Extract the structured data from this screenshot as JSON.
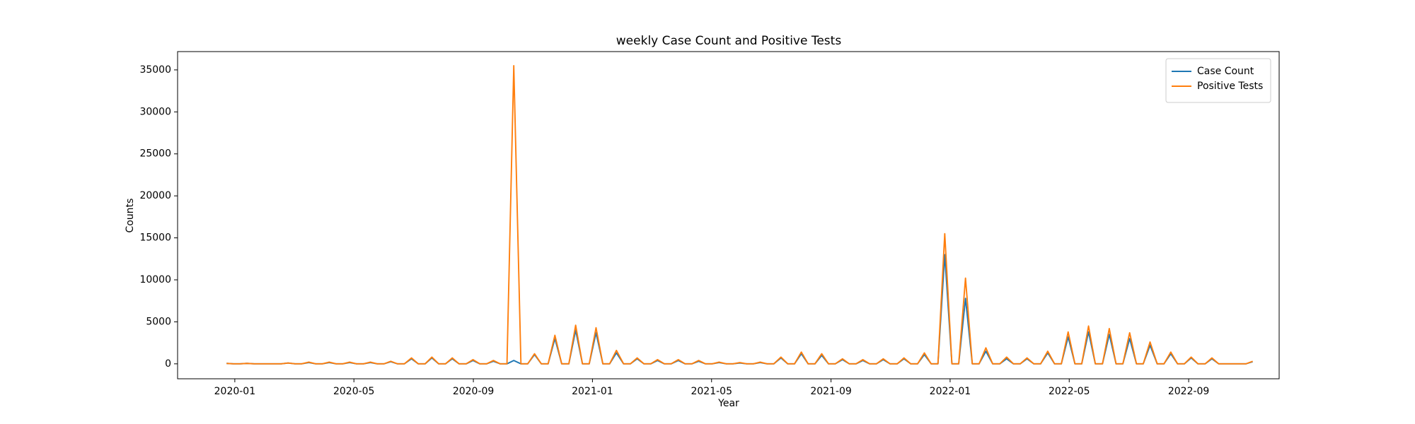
{
  "chart_data": {
    "type": "line",
    "title": "weekly Case Count and Positive Tests",
    "x_label": "Year",
    "y_label": "Counts",
    "x": [
      2019.977,
      2019.996,
      2020.015,
      2020.034,
      2020.054,
      2020.073,
      2020.092,
      2020.111,
      2020.13,
      2020.149,
      2020.168,
      2020.187,
      2020.207,
      2020.226,
      2020.245,
      2020.264,
      2020.283,
      2020.302,
      2020.321,
      2020.34,
      2020.36,
      2020.379,
      2020.398,
      2020.417,
      2020.436,
      2020.455,
      2020.474,
      2020.494,
      2020.513,
      2020.532,
      2020.551,
      2020.57,
      2020.589,
      2020.608,
      2020.627,
      2020.647,
      2020.666,
      2020.685,
      2020.704,
      2020.723,
      2020.742,
      2020.761,
      2020.78,
      2020.8,
      2020.819,
      2020.838,
      2020.857,
      2020.876,
      2020.895,
      2020.914,
      2020.934,
      2020.953,
      2020.972,
      2020.991,
      2021.01,
      2021.029,
      2021.048,
      2021.067,
      2021.087,
      2021.106,
      2021.125,
      2021.144,
      2021.163,
      2021.182,
      2021.201,
      2021.22,
      2021.24,
      2021.259,
      2021.278,
      2021.297,
      2021.316,
      2021.335,
      2021.354,
      2021.374,
      2021.393,
      2021.412,
      2021.431,
      2021.45,
      2021.469,
      2021.488,
      2021.507,
      2021.527,
      2021.546,
      2021.565,
      2021.584,
      2021.603,
      2021.622,
      2021.641,
      2021.66,
      2021.679,
      2021.699,
      2021.718,
      2021.737,
      2021.756,
      2021.775,
      2021.794,
      2021.813,
      2021.832,
      2021.852,
      2021.871,
      2021.89,
      2021.909,
      2021.928,
      2021.947,
      2021.966,
      2021.985,
      2022.005,
      2022.024,
      2022.043,
      2022.062,
      2022.081,
      2022.1,
      2022.119,
      2022.139,
      2022.158,
      2022.177,
      2022.196,
      2022.215,
      2022.234,
      2022.253,
      2022.273,
      2022.292,
      2022.311,
      2022.33,
      2022.349,
      2022.368,
      2022.387,
      2022.406,
      2022.426,
      2022.445,
      2022.464,
      2022.483,
      2022.502,
      2022.521,
      2022.54,
      2022.559,
      2022.579,
      2022.598,
      2022.617,
      2022.636,
      2022.655,
      2022.674,
      2022.693,
      2022.713,
      2022.732,
      2022.751,
      2022.77,
      2022.789,
      2022.808,
      2022.827,
      2022.846
    ],
    "series": [
      {
        "name": "Case Count",
        "color": "#1f77b4",
        "values": [
          50,
          0,
          0,
          50,
          0,
          0,
          0,
          0,
          0,
          100,
          0,
          0,
          150,
          0,
          0,
          150,
          0,
          0,
          150,
          0,
          0,
          150,
          0,
          0,
          250,
          0,
          0,
          600,
          0,
          0,
          700,
          0,
          0,
          600,
          0,
          0,
          400,
          0,
          0,
          300,
          0,
          0,
          400,
          0,
          0,
          1100,
          0,
          0,
          3000,
          0,
          0,
          4000,
          0,
          0,
          3700,
          0,
          0,
          1300,
          0,
          0,
          600,
          0,
          0,
          400,
          0,
          0,
          400,
          0,
          0,
          300,
          0,
          0,
          150,
          0,
          0,
          100,
          0,
          0,
          150,
          0,
          0,
          700,
          0,
          0,
          1200,
          0,
          0,
          1000,
          0,
          0,
          500,
          0,
          0,
          400,
          0,
          0,
          500,
          0,
          0,
          600,
          0,
          0,
          1100,
          0,
          0,
          13000,
          0,
          0,
          7800,
          0,
          0,
          1500,
          0,
          0,
          600,
          0,
          0,
          600,
          0,
          0,
          1300,
          0,
          0,
          3200,
          0,
          0,
          3800,
          0,
          0,
          3500,
          0,
          0,
          3000,
          0,
          0,
          2200,
          0,
          0,
          1200,
          0,
          0,
          700,
          0,
          0,
          600,
          0,
          0,
          0,
          0,
          0,
          250
        ]
      },
      {
        "name": "Positive Tests",
        "color": "#ff7f0e",
        "values": [
          50,
          0,
          0,
          50,
          0,
          0,
          0,
          0,
          0,
          100,
          0,
          0,
          200,
          0,
          0,
          200,
          0,
          0,
          200,
          0,
          0,
          200,
          0,
          0,
          300,
          0,
          0,
          700,
          0,
          0,
          800,
          0,
          0,
          700,
          0,
          0,
          500,
          0,
          0,
          400,
          0,
          0,
          35500,
          0,
          0,
          1200,
          0,
          0,
          3400,
          0,
          0,
          4600,
          0,
          0,
          4300,
          0,
          0,
          1600,
          0,
          0,
          700,
          0,
          0,
          500,
          0,
          0,
          500,
          0,
          0,
          400,
          0,
          0,
          200,
          0,
          0,
          150,
          0,
          0,
          200,
          0,
          0,
          800,
          0,
          0,
          1400,
          0,
          0,
          1200,
          0,
          0,
          600,
          0,
          0,
          500,
          0,
          0,
          600,
          0,
          0,
          700,
          0,
          0,
          1300,
          0,
          0,
          15500,
          0,
          0,
          10200,
          0,
          0,
          1900,
          0,
          0,
          800,
          0,
          0,
          700,
          0,
          0,
          1500,
          0,
          0,
          3800,
          0,
          0,
          4500,
          0,
          0,
          4200,
          0,
          0,
          3700,
          0,
          0,
          2600,
          0,
          0,
          1400,
          0,
          0,
          800,
          0,
          0,
          700,
          0,
          0,
          0,
          0,
          0,
          300
        ]
      }
    ],
    "xlim": [
      2019.84,
      2022.92
    ],
    "xticks": [
      {
        "value": 2020.0,
        "label": "2020-01"
      },
      {
        "value": 2020.333,
        "label": "2020-05"
      },
      {
        "value": 2020.667,
        "label": "2020-09"
      },
      {
        "value": 2021.0,
        "label": "2021-01"
      },
      {
        "value": 2021.333,
        "label": "2021-05"
      },
      {
        "value": 2021.667,
        "label": "2021-09"
      },
      {
        "value": 2022.0,
        "label": "2022-01"
      },
      {
        "value": 2022.333,
        "label": "2022-05"
      },
      {
        "value": 2022.667,
        "label": "2022-09"
      }
    ],
    "ylim": [
      -1780,
      37180
    ],
    "yticks": [
      0,
      5000,
      10000,
      15000,
      20000,
      25000,
      30000,
      35000
    ],
    "legend": "upper right"
  }
}
